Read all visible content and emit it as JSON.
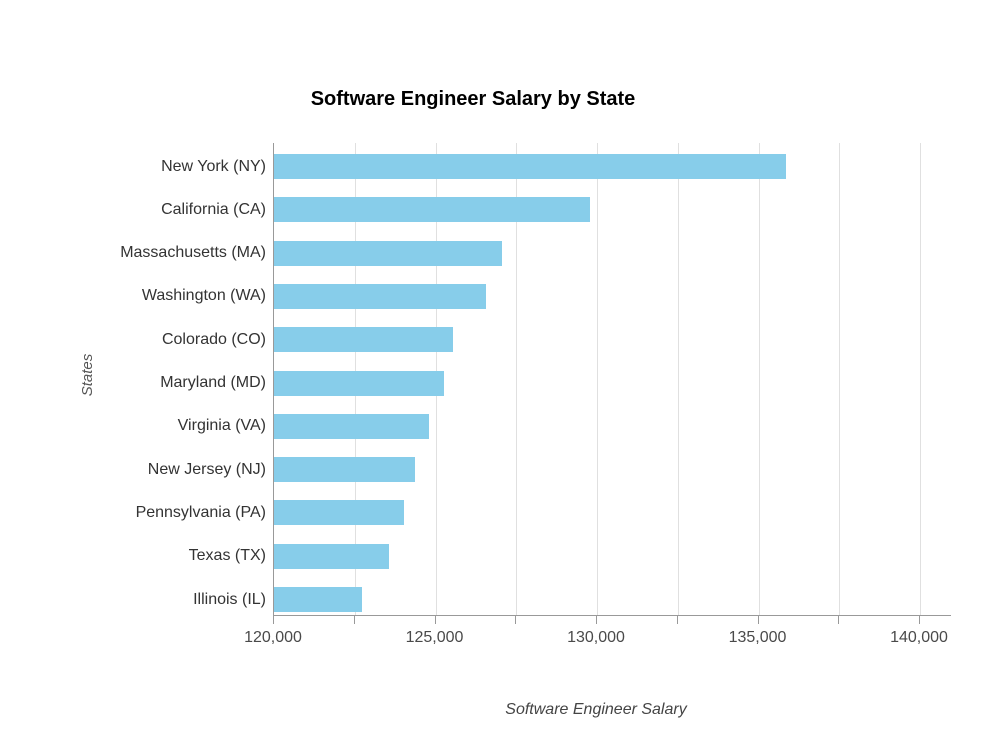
{
  "chart_data": {
    "type": "bar",
    "orientation": "horizontal",
    "title": "Software Engineer Salary by State",
    "xlabel": "Software Engineer Salary",
    "ylabel": "States",
    "categories": [
      "New York (NY)",
      "California (CA)",
      "Massachusetts (MA)",
      "Washington (WA)",
      "Colorado (CO)",
      "Maryland (MD)",
      "Virginia (VA)",
      "New Jersey (NJ)",
      "Pennsylvania (PA)",
      "Texas (TX)",
      "Illinois (IL)"
    ],
    "values": [
      135860,
      129780,
      127060,
      126550,
      125530,
      125250,
      124810,
      124370,
      124010,
      123570,
      122710
    ],
    "xlim": [
      120000,
      140000
    ],
    "x_tick_interval_minor": 2500,
    "x_tick_interval_major": 5000,
    "x_tick_labels": [
      "120,000",
      "125,000",
      "130,000",
      "135,000",
      "140,000"
    ],
    "grid": "vertical",
    "legend": "none",
    "bar_color": "#87CDEA",
    "gridline_color": "#e0e0e0",
    "axis_line_color": "#999999"
  }
}
